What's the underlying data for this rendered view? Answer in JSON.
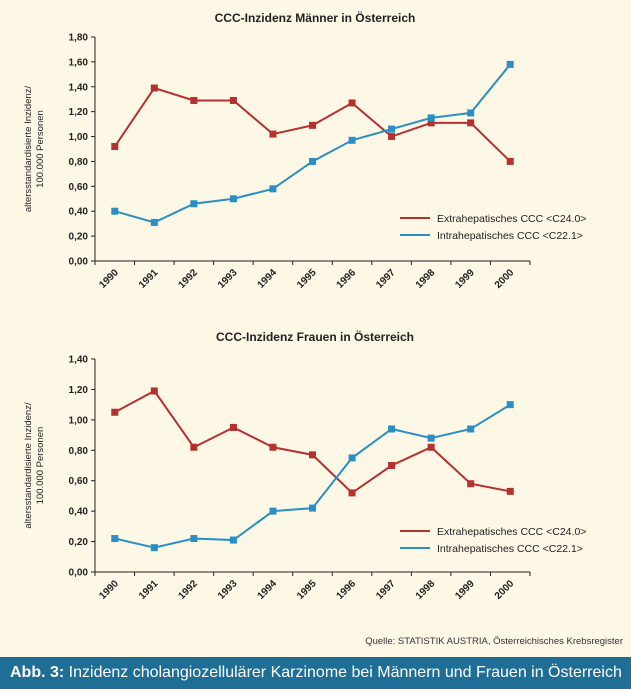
{
  "colors": {
    "extra": "#b5312f",
    "intra": "#2a8fc7",
    "axis": "#222222",
    "background": "#fdf7e6",
    "caption_bg": "#1f6e96"
  },
  "chart_data": [
    {
      "type": "line",
      "title": "CCC-Inzidenz Männer in Österreich",
      "ylabel": [
        "altersstandardisierte Inzidenz/",
        "100.000 Personen"
      ],
      "xlabel": "",
      "categories": [
        "1990",
        "1991",
        "1992",
        "1993",
        "1994",
        "1995",
        "1996",
        "1997",
        "1998",
        "1999",
        "2000"
      ],
      "ylim": [
        0,
        1.8
      ],
      "yticks": [
        "0,00",
        "0,20",
        "0,40",
        "0,60",
        "0,80",
        "1,00",
        "1,20",
        "1,40",
        "1,60",
        "1,80"
      ],
      "legend_position": "bottom-right",
      "series": [
        {
          "name": "Extrahepatisches CCC <C24.0>",
          "color": "extra",
          "values": [
            0.92,
            1.39,
            1.29,
            1.29,
            1.02,
            1.09,
            1.27,
            1.0,
            1.11,
            1.11,
            0.8
          ]
        },
        {
          "name": "Intrahepatisches CCC <C22.1>",
          "color": "intra",
          "values": [
            0.4,
            0.31,
            0.46,
            0.5,
            0.58,
            0.8,
            0.97,
            1.06,
            1.15,
            1.19,
            1.58
          ]
        }
      ]
    },
    {
      "type": "line",
      "title": "CCC-Inzidenz Frauen in Österreich",
      "ylabel": [
        "altersstandardisierte Inzidenz/",
        "100.000 Personen"
      ],
      "xlabel": "",
      "categories": [
        "1990",
        "1991",
        "1992",
        "1993",
        "1994",
        "1995",
        "1996",
        "1997",
        "1998",
        "1999",
        "2000"
      ],
      "ylim": [
        0,
        1.4
      ],
      "yticks": [
        "0,00",
        "0,20",
        "0,40",
        "0,60",
        "0,80",
        "1,00",
        "1,20",
        "1,40"
      ],
      "legend_position": "bottom-right",
      "series": [
        {
          "name": "Extrahepatisches CCC <C24.0>",
          "color": "extra",
          "values": [
            1.05,
            1.19,
            0.82,
            0.95,
            0.82,
            0.77,
            0.52,
            0.7,
            0.82,
            0.58,
            0.53
          ]
        },
        {
          "name": "Intrahepatisches CCC <C22.1>",
          "color": "intra",
          "values": [
            0.22,
            0.16,
            0.22,
            0.21,
            0.4,
            0.42,
            0.75,
            0.94,
            0.88,
            0.94,
            1.1
          ]
        }
      ]
    }
  ],
  "source": "Quelle: STATISTIK AUSTRIA, Österreichisches Krebsregister",
  "caption": {
    "label": "Abb. 3:",
    "text": " Inzidenz cholangiozellulärer Karzinome bei Männern und Frauen in Österreich"
  }
}
